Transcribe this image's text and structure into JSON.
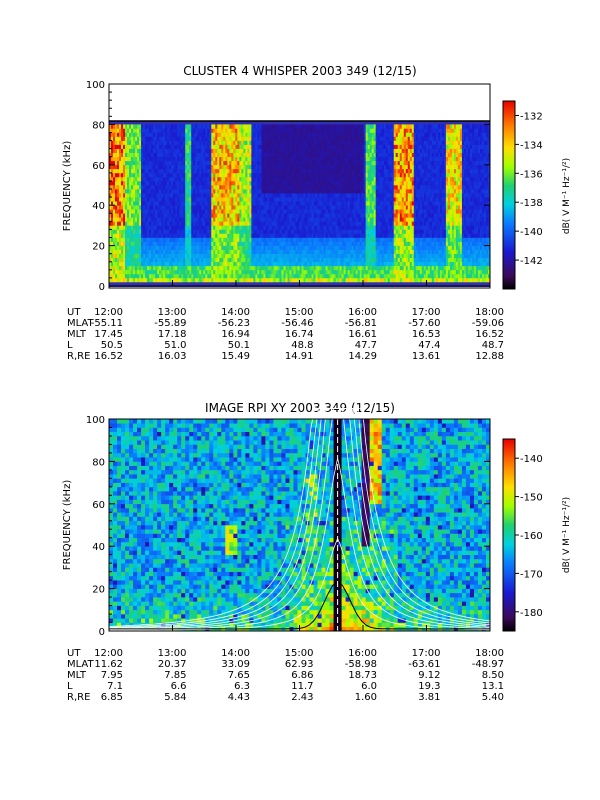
{
  "chart_data": [
    {
      "type": "heatmap",
      "title": "CLUSTER 4 WHISPER 2003 349 (12/15)",
      "ylabel": "FREQUENCY (kHz)",
      "ylim": [
        0,
        100
      ],
      "yticks": [
        "0",
        "20",
        "40",
        "60",
        "80",
        "100"
      ],
      "data_frequency_range_khz": [
        2,
        80
      ],
      "x_time_range": [
        "12:00",
        "18:00"
      ],
      "colorbar": {
        "label": "dB( V M⁻¹ Hz⁻¹/²)",
        "range": [
          -144,
          -131
        ],
        "ticks": [
          "-132",
          "-134",
          "-136",
          "-138",
          "-140",
          "-142"
        ]
      },
      "ephemeris": {
        "labels": [
          "UT",
          "MLAT",
          "MLT",
          "L",
          "R,RE"
        ],
        "columns": [
          [
            "12:00",
            "-55.11",
            "17.45",
            "50.5",
            "16.52"
          ],
          [
            "13:00",
            "-55.89",
            "17.18",
            "51.0",
            "16.03"
          ],
          [
            "14:00",
            "-56.23",
            "16.94",
            "50.1",
            "15.49"
          ],
          [
            "15:00",
            "-56.46",
            "16.74",
            "48.8",
            "14.91"
          ],
          [
            "16:00",
            "-56.81",
            "16.61",
            "47.7",
            "14.29"
          ],
          [
            "17:00",
            "-57.60",
            "16.53",
            "47.4",
            "13.61"
          ],
          [
            "18:00",
            "-59.06",
            "16.52",
            "48.7",
            "12.88"
          ]
        ]
      }
    },
    {
      "type": "heatmap",
      "title": "IMAGE RPI XY 2003 349 (12/15)",
      "ylabel": "FREQUENCY (kHz)",
      "ylim": [
        0,
        100
      ],
      "yticks": [
        "0",
        "20",
        "40",
        "60",
        "80",
        "100"
      ],
      "x_time_range": [
        "12:00",
        "18:00"
      ],
      "colorbar": {
        "label": "dB( V M⁻¹ Hz⁻¹/²)",
        "range": [
          -185,
          -135
        ],
        "ticks": [
          "-140",
          "-150",
          "-160",
          "-170",
          "-180"
        ]
      },
      "ephemeris": {
        "labels": [
          "UT",
          "MLAT",
          "MLT",
          "L",
          "R,RE"
        ],
        "columns": [
          [
            "12:00",
            "11.62",
            "7.95",
            "7.1",
            "6.85"
          ],
          [
            "13:00",
            "20.37",
            "7.85",
            "6.6",
            "5.84"
          ],
          [
            "14:00",
            "33.09",
            "7.65",
            "6.3",
            "4.43"
          ],
          [
            "15:00",
            "62.93",
            "6.86",
            "11.7",
            "2.43"
          ],
          [
            "16:00",
            "-58.98",
            "18.73",
            "6.0",
            "1.60"
          ],
          [
            "17:00",
            "-63.61",
            "9.12",
            "19.3",
            "3.81"
          ],
          [
            "18:00",
            "-48.97",
            "8.50",
            "13.1",
            "5.40"
          ]
        ]
      }
    }
  ]
}
